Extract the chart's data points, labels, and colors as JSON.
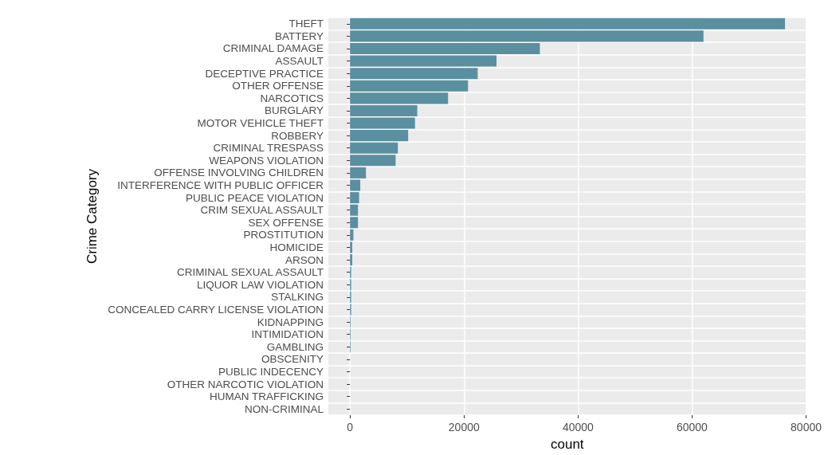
{
  "chart_data": {
    "type": "bar",
    "orientation": "horizontal",
    "xlabel": "count",
    "ylabel": "Crime Category",
    "categories": [
      "THEFT",
      "BATTERY",
      "CRIMINAL DAMAGE",
      "ASSAULT",
      "DECEPTIVE PRACTICE",
      "OTHER OFFENSE",
      "NARCOTICS",
      "BURGLARY",
      "MOTOR VEHICLE THEFT",
      "ROBBERY",
      "CRIMINAL TRESPASS",
      "WEAPONS VIOLATION",
      "OFFENSE INVOLVING CHILDREN",
      "INTERFERENCE WITH PUBLIC OFFICER",
      "PUBLIC PEACE VIOLATION",
      "CRIM SEXUAL ASSAULT",
      "SEX OFFENSE",
      "PROSTITUTION",
      "HOMICIDE",
      "ARSON",
      "CRIMINAL SEXUAL ASSAULT",
      "LIQUOR LAW VIOLATION",
      "STALKING",
      "CONCEALED CARRY LICENSE VIOLATION",
      "KIDNAPPING",
      "INTIMIDATION",
      "GAMBLING",
      "OBSCENITY",
      "PUBLIC INDECENCY",
      "OTHER NARCOTIC VIOLATION",
      "HUMAN TRAFFICKING",
      "NON-CRIMINAL"
    ],
    "values": [
      76300,
      62000,
      33300,
      25700,
      22400,
      20700,
      17200,
      11800,
      11400,
      10200,
      8400,
      8000,
      2800,
      1800,
      1600,
      1400,
      1400,
      600,
      400,
      400,
      200,
      200,
      200,
      200,
      100,
      100,
      100,
      0,
      0,
      0,
      0,
      0
    ],
    "color": "#5a8fa0",
    "xlim": [
      -3800,
      80000
    ],
    "xticks": [
      0,
      20000,
      40000,
      60000,
      80000
    ],
    "grid": true
  }
}
